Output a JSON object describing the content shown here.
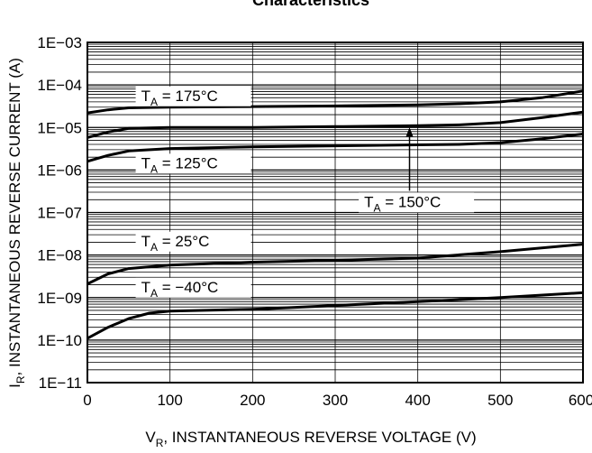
{
  "chart_data": {
    "type": "line",
    "title": "Characteristics",
    "xlabel": {
      "main": "V",
      "sub": "R",
      "rest": ", INSTANTANEOUS REVERSE VOLTAGE (V)"
    },
    "ylabel": {
      "main": "I",
      "sub": "R",
      "rest": ", INSTANTANEOUS REVERSE CURRENT (A)"
    },
    "xlim": [
      0,
      600
    ],
    "ylim": [
      1e-11,
      0.001
    ],
    "y_scale": "log",
    "grid": true,
    "x_ticks": [
      "0",
      "100",
      "200",
      "300",
      "400",
      "500",
      "600"
    ],
    "y_ticks": [
      "1E−11",
      "1E−10",
      "1E−09",
      "1E−08",
      "1E−07",
      "1E−06",
      "1E−05",
      "1E−04",
      "1E−03"
    ],
    "series": [
      {
        "name": {
          "main": "T",
          "sub": "A",
          "rest": " = 175°C"
        },
        "x": [
          0,
          25,
          50,
          100,
          200,
          300,
          400,
          450,
          500,
          550,
          600
        ],
        "y": [
          2.2e-05,
          2.6e-05,
          2.9e-05,
          3e-05,
          3.1e-05,
          3.2e-05,
          3.4e-05,
          3.6e-05,
          4e-05,
          5e-05,
          7.2e-05
        ]
      },
      {
        "name": {
          "main": "T",
          "sub": "A",
          "rest": " = 150°C"
        },
        "x": [
          0,
          25,
          50,
          100,
          200,
          300,
          400,
          450,
          500,
          550,
          600
        ],
        "y": [
          5.8e-06,
          7.8e-06,
          9.5e-06,
          1e-05,
          1e-05,
          1.05e-05,
          1.1e-05,
          1.15e-05,
          1.3e-05,
          1.7e-05,
          2.3e-05
        ]
      },
      {
        "name": {
          "main": "T",
          "sub": "A",
          "rest": " = 125°C"
        },
        "x": [
          0,
          25,
          50,
          100,
          200,
          300,
          400,
          450,
          500,
          550,
          600
        ],
        "y": [
          1.6e-06,
          2.2e-06,
          2.8e-06,
          3.2e-06,
          3.5e-06,
          3.7e-06,
          3.9e-06,
          4e-06,
          4.4e-06,
          5.4e-06,
          7e-06
        ]
      },
      {
        "name": {
          "main": "T",
          "sub": "A",
          "rest": " = 25°C"
        },
        "x": [
          0,
          25,
          50,
          100,
          200,
          300,
          400,
          500,
          600
        ],
        "y": [
          2.1e-09,
          3.6e-09,
          4.8e-09,
          5.8e-09,
          6.8e-09,
          7.5e-09,
          8.5e-09,
          1.2e-08,
          1.8e-08
        ]
      },
      {
        "name": {
          "main": "T",
          "sub": "A",
          "rest": " = −40°C"
        },
        "x": [
          0,
          25,
          50,
          75,
          100,
          200,
          300,
          400,
          500,
          600
        ],
        "y": [
          1.1e-10,
          2e-10,
          3.2e-10,
          4.3e-10,
          4.8e-10,
          5.3e-10,
          6.5e-10,
          8e-10,
          1e-09,
          1.3e-09
        ]
      }
    ]
  }
}
